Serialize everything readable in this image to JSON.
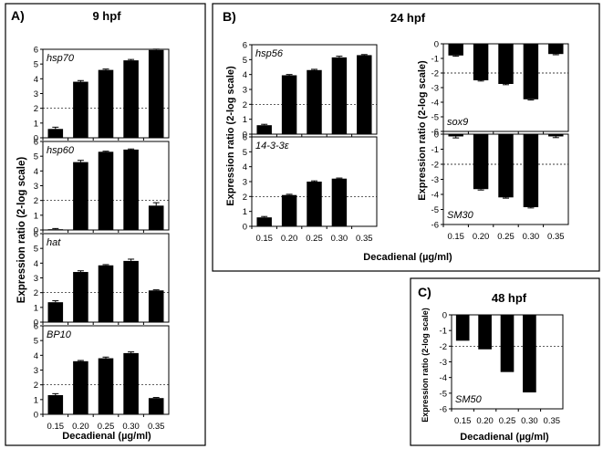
{
  "panels": [
    {
      "letter": "A)",
      "title": "9 hpf"
    },
    {
      "letter": "B)",
      "title": "24 hpf"
    },
    {
      "letter": "C)",
      "title": "48 hpf"
    }
  ],
  "common": {
    "ylabel": "Expression ratio (2-log scale)",
    "xlabel": "Decadienal (µg/ml)",
    "x_ticks": [
      "0.15",
      "0.20",
      "0.25",
      "0.30",
      "0.35"
    ]
  },
  "chart_data": [
    {
      "type": "bar",
      "panel": "A)",
      "gene": "hsp70",
      "categories": [
        "0.15",
        "0.20",
        "0.25",
        "0.30",
        "0.35"
      ],
      "values": [
        0.6,
        3.8,
        4.6,
        5.25,
        5.95
      ],
      "errors": [
        0.12,
        0.08,
        0.06,
        0.06,
        0.06
      ],
      "threshold": 2,
      "ylim": [
        0,
        6
      ],
      "yticks": [
        0,
        1,
        2,
        3,
        4,
        5,
        6
      ]
    },
    {
      "type": "bar",
      "panel": "A)",
      "gene": "hsp60",
      "categories": [
        "0.15",
        "0.20",
        "0.25",
        "0.30",
        "0.35"
      ],
      "values": [
        0.05,
        4.6,
        5.3,
        5.45,
        1.65
      ],
      "errors": [
        0.05,
        0.12,
        0.04,
        0.04,
        0.2
      ],
      "threshold": 2,
      "ylim": [
        0,
        6
      ],
      "yticks": [
        0,
        1,
        2,
        3,
        4,
        5,
        6
      ]
    },
    {
      "type": "bar",
      "panel": "A)",
      "gene": "hat",
      "categories": [
        "0.15",
        "0.20",
        "0.25",
        "0.30",
        "0.35"
      ],
      "values": [
        1.35,
        3.4,
        3.85,
        4.15,
        2.15
      ],
      "errors": [
        0.1,
        0.08,
        0.05,
        0.12,
        0.04
      ],
      "threshold": 2,
      "ylim": [
        0,
        6
      ],
      "yticks": [
        0,
        1,
        2,
        3,
        4,
        5,
        6
      ]
    },
    {
      "type": "bar",
      "panel": "A)",
      "gene": "BP10",
      "categories": [
        "0.15",
        "0.20",
        "0.25",
        "0.30",
        "0.35"
      ],
      "values": [
        1.3,
        3.6,
        3.8,
        4.15,
        1.1
      ],
      "errors": [
        0.1,
        0.05,
        0.08,
        0.08,
        0.04
      ],
      "threshold": 2,
      "ylim": [
        0,
        6
      ],
      "yticks": [
        0,
        1,
        2,
        3,
        4,
        5,
        6
      ]
    },
    {
      "type": "bar",
      "panel": "B)",
      "gene": "hsp56",
      "categories": [
        "0.15",
        "0.20",
        "0.25",
        "0.30",
        "0.35"
      ],
      "values": [
        0.6,
        3.95,
        4.3,
        5.15,
        5.3
      ],
      "errors": [
        0.06,
        0.05,
        0.05,
        0.08,
        0.04
      ],
      "threshold": 2,
      "ylim": [
        0,
        6
      ],
      "yticks": [
        0,
        1,
        2,
        3,
        4,
        5,
        6
      ]
    },
    {
      "type": "bar",
      "panel": "B)",
      "gene": "14-3-3ε",
      "categories": [
        "0.15",
        "0.20",
        "0.25",
        "0.30",
        "0.35"
      ],
      "values": [
        0.6,
        2.1,
        3.0,
        3.2,
        0.0
      ],
      "errors": [
        0.06,
        0.05,
        0.05,
        0.04,
        0.0
      ],
      "threshold": 2,
      "ylim": [
        0,
        6
      ],
      "yticks": [
        0,
        1,
        2,
        3,
        4,
        5,
        6
      ]
    },
    {
      "type": "bar",
      "panel": "B)",
      "gene": "sox9",
      "categories": [
        "0.15",
        "0.20",
        "0.25",
        "0.30",
        "0.35"
      ],
      "values": [
        -0.8,
        -2.5,
        -2.75,
        -3.8,
        -0.7
      ],
      "errors": [
        0.05,
        0.05,
        0.05,
        0.05,
        0.05
      ],
      "threshold": -2,
      "ylim": [
        -6,
        0
      ],
      "yticks": [
        0,
        -1,
        -2,
        -3,
        -4,
        -5,
        -6
      ]
    },
    {
      "type": "bar",
      "panel": "B)",
      "gene": "SM30",
      "categories": [
        "0.15",
        "0.20",
        "0.25",
        "0.30",
        "0.35"
      ],
      "values": [
        -0.15,
        -3.65,
        -4.2,
        -4.85,
        -0.15
      ],
      "errors": [
        0.1,
        0.06,
        0.05,
        0.05,
        0.08
      ],
      "threshold": -2,
      "ylim": [
        -6,
        0
      ],
      "yticks": [
        0,
        -1,
        -2,
        -3,
        -4,
        -5,
        -6
      ]
    },
    {
      "type": "bar",
      "panel": "C)",
      "gene": "SM50",
      "categories": [
        "0.15",
        "0.20",
        "0.25",
        "0.30",
        "0.35"
      ],
      "values": [
        -1.65,
        -2.2,
        -3.65,
        -4.95,
        0
      ],
      "errors": [
        0,
        0,
        0,
        0,
        0
      ],
      "threshold": -2,
      "ylim": [
        -6,
        0
      ],
      "yticks": [
        0,
        -1,
        -2,
        -3,
        -4,
        -5,
        -6
      ]
    }
  ]
}
